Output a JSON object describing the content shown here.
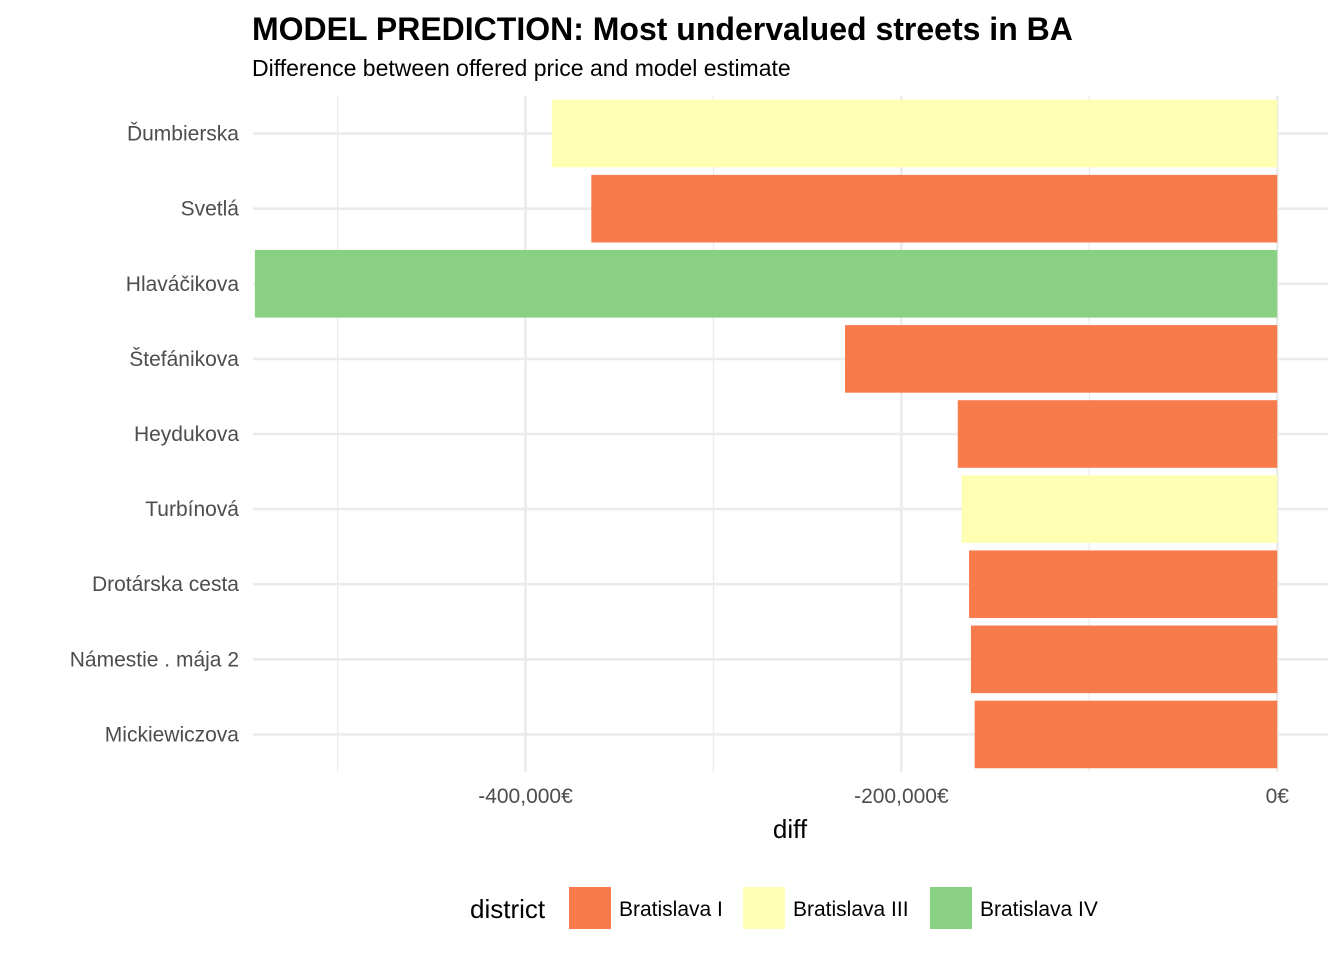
{
  "chart_data": {
    "type": "bar",
    "orientation": "horizontal",
    "title": "MODEL PREDICTION: Most undervalued streets in BA",
    "subtitle": "Difference between offered price and model estimate",
    "xlabel": "diff",
    "ylabel": "",
    "xlim": [
      -545000,
      27000
    ],
    "x_ticks": [
      -400000,
      -200000,
      0
    ],
    "x_tick_labels": [
      "-400,000€",
      "-200,000€",
      "0€"
    ],
    "x_minor_ticks": [
      -500000,
      -300000,
      -100000
    ],
    "grid": true,
    "legend": {
      "title": "district",
      "position": "bottom",
      "entries": [
        {
          "label": "Bratislava I",
          "color": "#f87c4b"
        },
        {
          "label": "Bratislava III",
          "color": "#feffb2"
        },
        {
          "label": "Bratislava IV",
          "color": "#8ad082"
        }
      ]
    },
    "bars": [
      {
        "category": "Ďumbierska",
        "value": -386000,
        "district": "Bratislava III"
      },
      {
        "category": "Svetlá",
        "value": -365000,
        "district": "Bratislava I"
      },
      {
        "category": "Hlaváčikova",
        "value": -544000,
        "district": "Bratislava IV"
      },
      {
        "category": "Štefánikova",
        "value": -230000,
        "district": "Bratislava I"
      },
      {
        "category": "Heydukova",
        "value": -170000,
        "district": "Bratislava I"
      },
      {
        "category": "Turbínová",
        "value": -168000,
        "district": "Bratislava III"
      },
      {
        "category": "Drotárska cesta",
        "value": -164000,
        "district": "Bratislava I"
      },
      {
        "category": "Námestie . mája 2",
        "value": -163000,
        "district": "Bratislava I"
      },
      {
        "category": "Mickiewiczova",
        "value": -161000,
        "district": "Bratislava I"
      }
    ]
  }
}
